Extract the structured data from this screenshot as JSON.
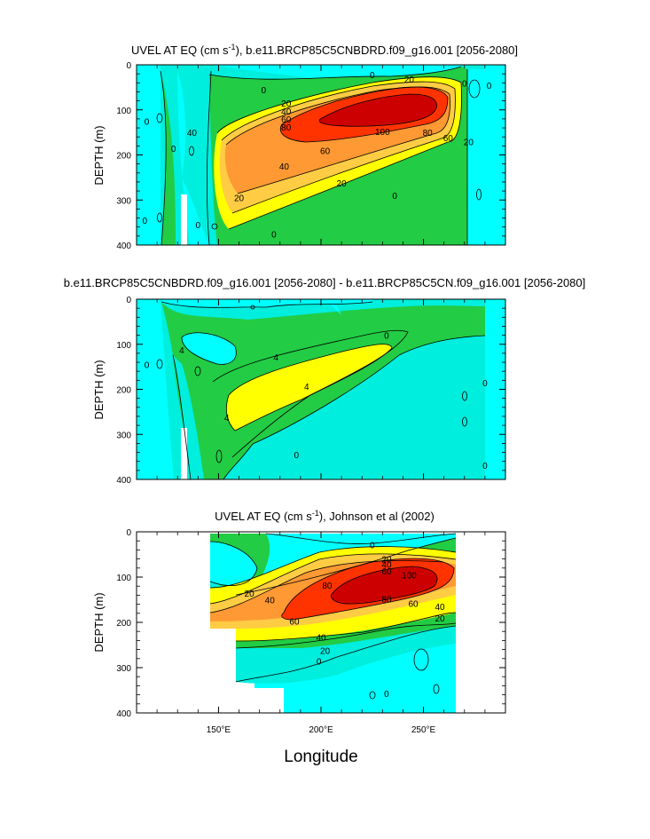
{
  "figure": {
    "xlabel": "Longitude",
    "ylabel": "DEPTH (m)",
    "x_ticks": [
      {
        "value": 150,
        "label": "150°E"
      },
      {
        "value": 200,
        "label": "200°E"
      },
      {
        "value": 250,
        "label": "250°E"
      }
    ],
    "y_ticks": [
      0,
      100,
      200,
      300,
      400
    ]
  },
  "colors": {
    "levels": [
      "#00ffff",
      "#00eedd",
      "#22cc44",
      "#ffff00",
      "#ffcc44",
      "#ff9933",
      "#ff3300",
      "#cc0000"
    ],
    "land": "#ffffff",
    "outline": "#000000"
  },
  "chart_data": [
    {
      "type": "heatmap",
      "title_parts": [
        "UVEL AT EQ (cm s",
        "-1",
        "), b.e11.BRCP85C5CNBDRD.f09_g16.001 [2056-2080]"
      ],
      "xlim": [
        110,
        290
      ],
      "ylim": [
        400,
        0
      ],
      "core_lon": 233,
      "core_depth": 120,
      "core_max": 100,
      "contour_labels": [
        {
          "text": "0",
          "lon": 172,
          "depth": 55
        },
        {
          "text": "0",
          "lon": 225,
          "depth": 22
        },
        {
          "text": "20",
          "lon": 243,
          "depth": 32
        },
        {
          "text": "20",
          "lon": 183,
          "depth": 85
        },
        {
          "text": "40",
          "lon": 183,
          "depth": 102
        },
        {
          "text": "60",
          "lon": 183,
          "depth": 120
        },
        {
          "text": "80",
          "lon": 183,
          "depth": 138
        },
        {
          "text": "100",
          "lon": 230,
          "depth": 148
        },
        {
          "text": "80",
          "lon": 252,
          "depth": 150
        },
        {
          "text": "60",
          "lon": 262,
          "depth": 162
        },
        {
          "text": "60",
          "lon": 202,
          "depth": 190
        },
        {
          "text": "40",
          "lon": 182,
          "depth": 225
        },
        {
          "text": "20",
          "lon": 210,
          "depth": 262
        },
        {
          "text": "20",
          "lon": 160,
          "depth": 295
        },
        {
          "text": "20",
          "lon": 272,
          "depth": 170
        },
        {
          "text": "0",
          "lon": 270,
          "depth": 40
        },
        {
          "text": "0",
          "lon": 282,
          "depth": 45
        },
        {
          "text": "0",
          "lon": 236,
          "depth": 290
        },
        {
          "text": "0",
          "lon": 177,
          "depth": 375
        },
        {
          "text": "0",
          "lon": 115,
          "depth": 125
        },
        {
          "text": "0",
          "lon": 128,
          "depth": 185
        },
        {
          "text": "0",
          "lon": 114,
          "depth": 345
        },
        {
          "text": "40",
          "lon": 137,
          "depth": 150
        },
        {
          "text": "0",
          "lon": 140,
          "depth": 355
        }
      ]
    },
    {
      "type": "heatmap",
      "title": "b.e11.BRCP85C5CNBDRD.f09_g16.001 [2056-2080] - b.e11.BRCP85C5CN.f09_g16.001 [2056-2080]",
      "xlim": [
        110,
        290
      ],
      "ylim": [
        400,
        0
      ],
      "contour_labels": [
        {
          "text": "4",
          "lon": 132,
          "depth": 112
        },
        {
          "text": "4",
          "lon": 178,
          "depth": 128
        },
        {
          "text": "4",
          "lon": 193,
          "depth": 193
        },
        {
          "text": "4",
          "lon": 154,
          "depth": 262
        },
        {
          "text": "0",
          "lon": 188,
          "depth": 345
        },
        {
          "text": "0",
          "lon": 115,
          "depth": 145
        },
        {
          "text": "0",
          "lon": 232,
          "depth": 80
        },
        {
          "text": "0",
          "lon": 280,
          "depth": 185
        },
        {
          "text": "0",
          "lon": 280,
          "depth": 368
        }
      ]
    },
    {
      "type": "heatmap",
      "title_parts": [
        "UVEL AT EQ (cm s",
        "-1",
        "), Johnson et al (2002)"
      ],
      "xlim": [
        110,
        290
      ],
      "ylim": [
        400,
        0
      ],
      "core_lon": 233,
      "core_depth": 100,
      "core_max": 100,
      "contour_labels": [
        {
          "text": "0",
          "lon": 225,
          "depth": 28
        },
        {
          "text": "20",
          "lon": 232,
          "depth": 60
        },
        {
          "text": "40",
          "lon": 232,
          "depth": 72
        },
        {
          "text": "60",
          "lon": 232,
          "depth": 86
        },
        {
          "text": "100",
          "lon": 243,
          "depth": 95
        },
        {
          "text": "80",
          "lon": 203,
          "depth": 118
        },
        {
          "text": "20",
          "lon": 165,
          "depth": 135
        },
        {
          "text": "40",
          "lon": 175,
          "depth": 150
        },
        {
          "text": "80",
          "lon": 232,
          "depth": 148
        },
        {
          "text": "60",
          "lon": 245,
          "depth": 158
        },
        {
          "text": "40",
          "lon": 258,
          "depth": 165
        },
        {
          "text": "20",
          "lon": 258,
          "depth": 190
        },
        {
          "text": "60",
          "lon": 187,
          "depth": 197
        },
        {
          "text": "40",
          "lon": 200,
          "depth": 232
        },
        {
          "text": "20",
          "lon": 202,
          "depth": 262
        },
        {
          "text": "0",
          "lon": 199,
          "depth": 285
        },
        {
          "text": "0",
          "lon": 232,
          "depth": 357
        }
      ]
    }
  ]
}
